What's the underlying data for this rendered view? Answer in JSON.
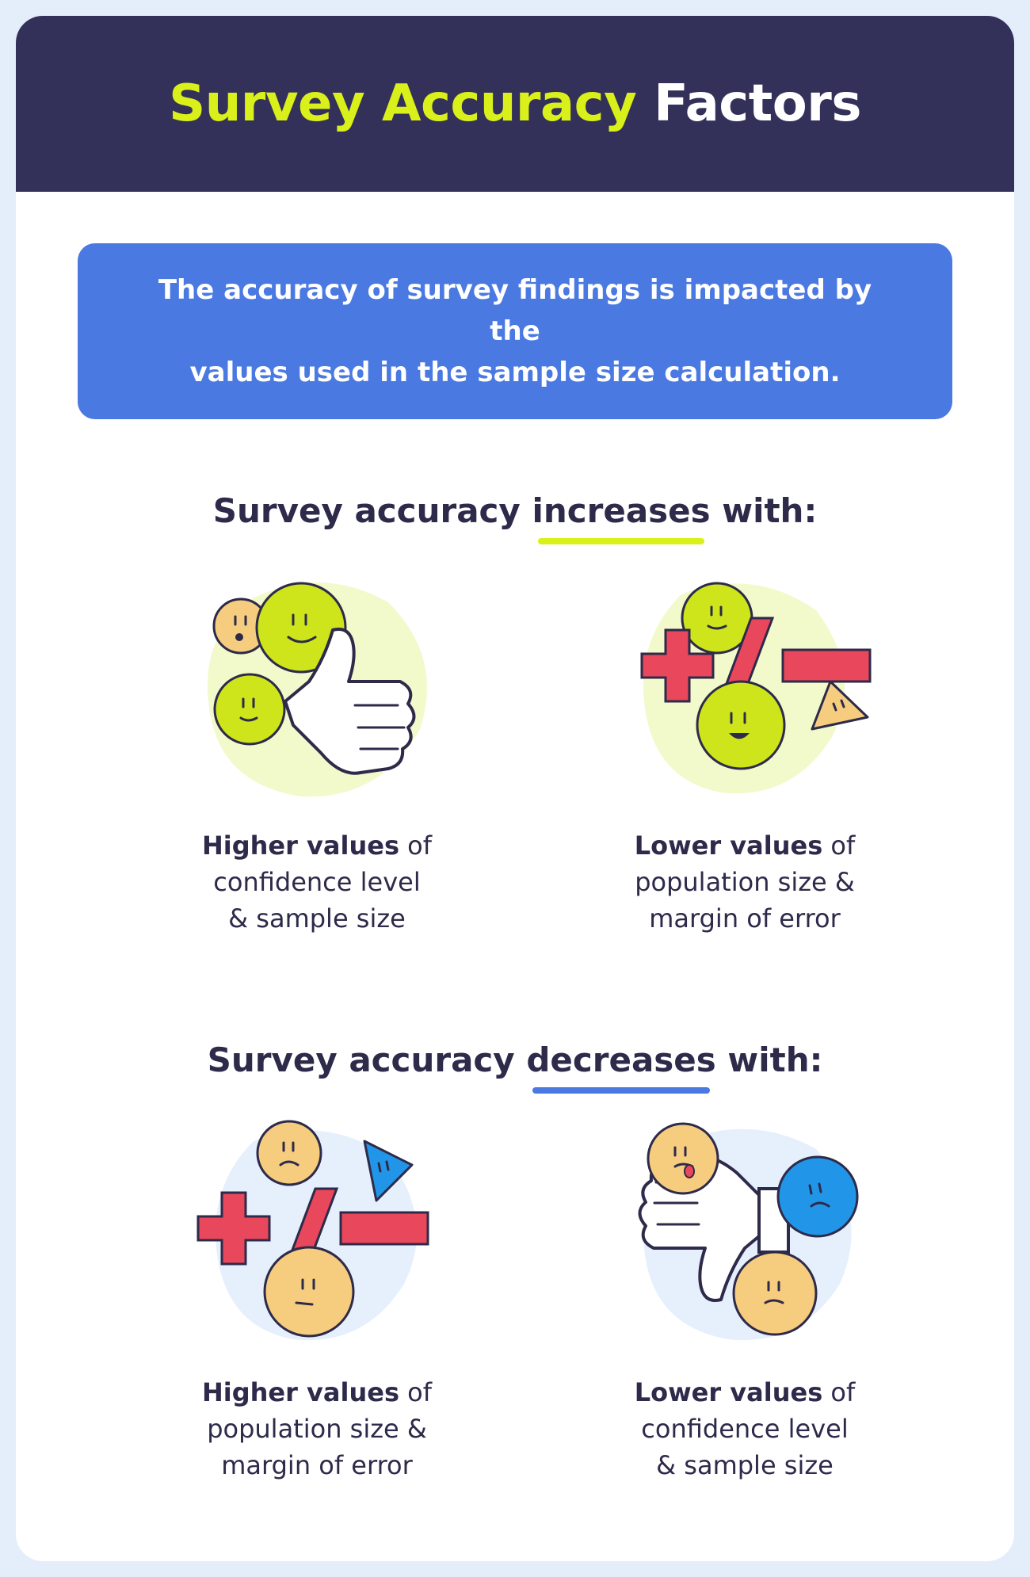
{
  "header": {
    "title_accent": "Survey Accuracy",
    "title_rest": "Factors"
  },
  "banner": {
    "line1": "The accuracy of survey findings is impacted by the",
    "line2": "values used in the sample size calculation."
  },
  "increases": {
    "prefix": "Survey accuracy",
    "keyword": "increases",
    "suffix": "with:",
    "items": [
      {
        "icon": "thumbs-up-with-happy-faces",
        "bold": "Higher values",
        "line1_rest": "of",
        "line2": "confidence level",
        "line3": "& sample size"
      },
      {
        "icon": "math-symbols-with-happy-faces",
        "bold": "Lower values",
        "line1_rest": "of",
        "line2": "population size &",
        "line3": "margin of error"
      }
    ]
  },
  "decreases": {
    "prefix": "Survey accuracy",
    "keyword": "decreases",
    "suffix": "with:",
    "items": [
      {
        "icon": "math-symbols-with-sad-faces",
        "bold": "Higher values",
        "line1_rest": "of",
        "line2": "population size &",
        "line3": "margin of error"
      },
      {
        "icon": "thumbs-down-with-sad-faces",
        "bold": "Lower values",
        "line1_rest": "of",
        "line2": "confidence level",
        "line3": "& sample size"
      }
    ]
  },
  "colors": {
    "navy": "#33305a",
    "lime": "#d9f01a",
    "blue": "#4a79e2",
    "red": "#e9475b",
    "peach": "#f6cc7e",
    "cyan": "#2196e8"
  }
}
